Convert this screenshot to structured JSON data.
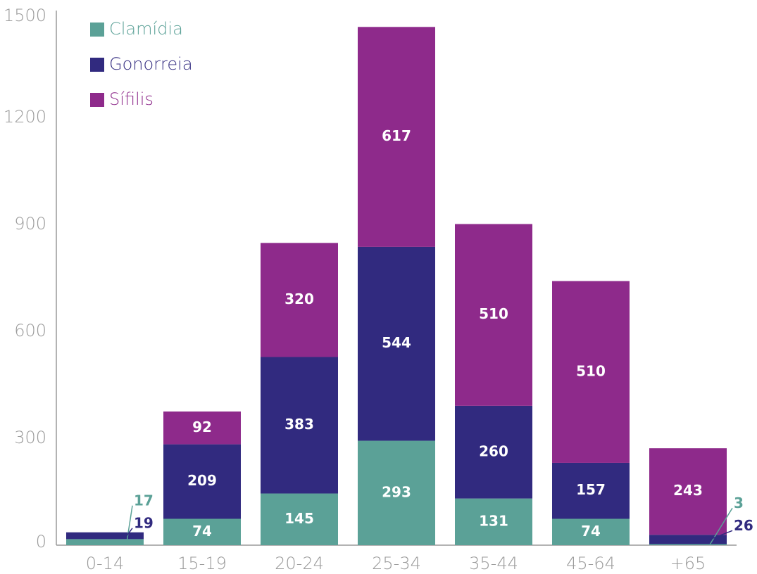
{
  "chart_data": {
    "type": "stacked_bar",
    "categories": [
      "0-14",
      "15-19",
      "20-24",
      "25-34",
      "35-44",
      "45-64",
      "+65"
    ],
    "series": [
      {
        "name": "Clamídia",
        "color": "#5ba197",
        "values": [
          17,
          74,
          145,
          293,
          131,
          74,
          3
        ]
      },
      {
        "name": "Gonorreia",
        "color": "#312a7f",
        "values": [
          19,
          209,
          383,
          544,
          260,
          157,
          26
        ]
      },
      {
        "name": "Sífilis",
        "color": "#8e2a8b",
        "values": [
          null,
          92,
          320,
          617,
          510,
          510,
          243
        ]
      }
    ],
    "ylim": [
      0,
      1500
    ],
    "yticks": [
      0,
      300,
      600,
      900,
      1200,
      1500
    ],
    "grid": false,
    "legend": "upper left"
  }
}
